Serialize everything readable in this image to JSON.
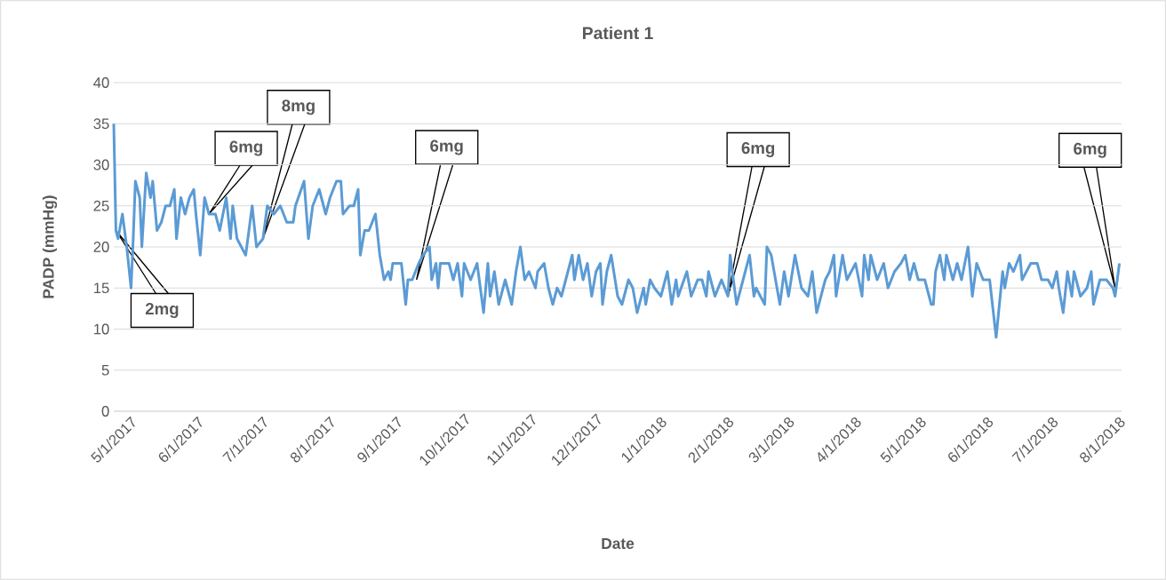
{
  "chart_data": {
    "type": "line",
    "title": "Patient 1",
    "xlabel": "Date",
    "ylabel": "PADP (mmHg)",
    "color": "#5b9bd5",
    "x": [
      "2017-05-01",
      "2017-05-02",
      "2017-05-03",
      "2017-05-05",
      "2017-05-07",
      "2017-05-09",
      "2017-05-10",
      "2017-05-11",
      "2017-05-13",
      "2017-05-14",
      "2017-05-16",
      "2017-05-18",
      "2017-05-19",
      "2017-05-21",
      "2017-05-23",
      "2017-05-25",
      "2017-05-27",
      "2017-05-29",
      "2017-05-30",
      "2017-06-01",
      "2017-06-03",
      "2017-06-05",
      "2017-06-07",
      "2017-06-08",
      "2017-06-10",
      "2017-06-12",
      "2017-06-14",
      "2017-06-17",
      "2017-06-19",
      "2017-06-22",
      "2017-06-24",
      "2017-06-25",
      "2017-06-27",
      "2017-07-01",
      "2017-07-04",
      "2017-07-06",
      "2017-07-09",
      "2017-07-11",
      "2017-07-14",
      "2017-07-17",
      "2017-07-20",
      "2017-07-23",
      "2017-07-24",
      "2017-07-28",
      "2017-07-30",
      "2017-08-01",
      "2017-08-04",
      "2017-08-07",
      "2017-08-09",
      "2017-08-12",
      "2017-08-14",
      "2017-08-15",
      "2017-08-18",
      "2017-08-20",
      "2017-08-22",
      "2017-08-23",
      "2017-08-25",
      "2017-08-27",
      "2017-08-30",
      "2017-09-01",
      "2017-09-03",
      "2017-09-05",
      "2017-09-06",
      "2017-09-07",
      "2017-09-11",
      "2017-09-13",
      "2017-09-14",
      "2017-09-16",
      "2017-09-19",
      "2017-09-21",
      "2017-09-24",
      "2017-09-25",
      "2017-09-27",
      "2017-09-28",
      "2017-09-29",
      "2017-10-03",
      "2017-10-05",
      "2017-10-07",
      "2017-10-09",
      "2017-10-10",
      "2017-10-13",
      "2017-10-16",
      "2017-10-19",
      "2017-10-21",
      "2017-10-22",
      "2017-10-24",
      "2017-10-26",
      "2017-10-29",
      "2017-10-30",
      "2017-11-01",
      "2017-11-03",
      "2017-11-05",
      "2017-11-07",
      "2017-11-09",
      "2017-11-12",
      "2017-11-13",
      "2017-11-16",
      "2017-11-18",
      "2017-11-20",
      "2017-11-22",
      "2017-11-24",
      "2017-11-27",
      "2017-11-29",
      "2017-11-30",
      "2017-12-02",
      "2017-12-04",
      "2017-12-06",
      "2017-12-08",
      "2017-12-10",
      "2017-12-12",
      "2017-12-13",
      "2017-12-15",
      "2017-12-17",
      "2017-12-20",
      "2017-12-22",
      "2017-12-25",
      "2017-12-27",
      "2017-12-29",
      "2018-01-01",
      "2018-01-02",
      "2018-01-04",
      "2018-01-06",
      "2018-01-09",
      "2018-01-12",
      "2018-01-14",
      "2018-01-16",
      "2018-01-17",
      "2018-01-21",
      "2018-01-23",
      "2018-01-26",
      "2018-01-28",
      "2018-01-30",
      "2018-01-31",
      "2018-02-03",
      "2018-02-06",
      "2018-02-09",
      "2018-02-10",
      "2018-02-13",
      "2018-02-15",
      "2018-02-16",
      "2018-02-19",
      "2018-02-21",
      "2018-02-22",
      "2018-02-26",
      "2018-02-27",
      "2018-03-01",
      "2018-03-03",
      "2018-03-05",
      "2018-03-07",
      "2018-03-09",
      "2018-03-12",
      "2018-03-15",
      "2018-03-18",
      "2018-03-20",
      "2018-03-22",
      "2018-03-26",
      "2018-03-28",
      "2018-03-30",
      "2018-03-31",
      "2018-04-03",
      "2018-04-05",
      "2018-04-07",
      "2018-04-09",
      "2018-04-12",
      "2018-04-13",
      "2018-04-15",
      "2018-04-16",
      "2018-04-19",
      "2018-04-22",
      "2018-04-24",
      "2018-04-27",
      "2018-04-30",
      "2018-05-02",
      "2018-05-04",
      "2018-05-06",
      "2018-05-08",
      "2018-05-11",
      "2018-05-14",
      "2018-05-15",
      "2018-05-16",
      "2018-05-18",
      "2018-05-20",
      "2018-05-21",
      "2018-05-24",
      "2018-05-26",
      "2018-05-28",
      "2018-05-31",
      "2018-06-02",
      "2018-06-04",
      "2018-06-07",
      "2018-06-10",
      "2018-06-13",
      "2018-06-16",
      "2018-06-17",
      "2018-06-19",
      "2018-06-21",
      "2018-06-24",
      "2018-06-25",
      "2018-06-29",
      "2018-07-02",
      "2018-07-04",
      "2018-07-07",
      "2018-07-09",
      "2018-07-11",
      "2018-07-12",
      "2018-07-14",
      "2018-07-16",
      "2018-07-18",
      "2018-07-19",
      "2018-07-22",
      "2018-07-25",
      "2018-07-27",
      "2018-07-28",
      "2018-07-31",
      "2018-08-03",
      "2018-08-06",
      "2018-08-07",
      "2018-08-09"
    ],
    "values": [
      35,
      22,
      21,
      24,
      20,
      15,
      21,
      28,
      26,
      20,
      29,
      26,
      28,
      22,
      23,
      25,
      25,
      27,
      21,
      26,
      24,
      26,
      27,
      24,
      19,
      26,
      24,
      24,
      22,
      26,
      21,
      25,
      21,
      19,
      25,
      20,
      21,
      25,
      24,
      25,
      23,
      23,
      25,
      28,
      21,
      25,
      27,
      24,
      26,
      28,
      28,
      24,
      25,
      25,
      27,
      19,
      22,
      22,
      24,
      19,
      16,
      17,
      16,
      18,
      18,
      13,
      16,
      16,
      18,
      19,
      20,
      16,
      18,
      15,
      18,
      18,
      16,
      18,
      14,
      18,
      16,
      18,
      12,
      18,
      14,
      17,
      13,
      16,
      15,
      13,
      17,
      20,
      16,
      17,
      15,
      17,
      18,
      15,
      13,
      15,
      14,
      17,
      19,
      16,
      19,
      16,
      18,
      14,
      17,
      18,
      13,
      17,
      19,
      14,
      13,
      16,
      15,
      12,
      15,
      13,
      16,
      15,
      14,
      17,
      13,
      16,
      14,
      17,
      14,
      16,
      16,
      14,
      17,
      14,
      16,
      14,
      19,
      13,
      15,
      16,
      19,
      14,
      15,
      13,
      20,
      19,
      16,
      13,
      17,
      14,
      19,
      15,
      14,
      17,
      12,
      16,
      17,
      19,
      14,
      19,
      16,
      17,
      18,
      14,
      19,
      16,
      19,
      16,
      18,
      15,
      17,
      18,
      19,
      16,
      18,
      16,
      16,
      13,
      13,
      17,
      19,
      16,
      19,
      16,
      18,
      16,
      20,
      14,
      18,
      16,
      16,
      9,
      17,
      15,
      18,
      17,
      19,
      16,
      18,
      18,
      16,
      16,
      15,
      17,
      15,
      12,
      17,
      14,
      17,
      14,
      15,
      17,
      13,
      16,
      16,
      15,
      14,
      18
    ],
    "xlim": [
      "2017-05-01",
      "2018-08-10"
    ],
    "ylim": [
      0,
      40
    ],
    "yticks": [
      0,
      5,
      10,
      15,
      20,
      25,
      30,
      35,
      40
    ],
    "xticks": [
      {
        "value": "2017-05-01",
        "label": "5/1/2017"
      },
      {
        "value": "2017-06-01",
        "label": "6/1/2017"
      },
      {
        "value": "2017-07-01",
        "label": "7/1/2017"
      },
      {
        "value": "2017-08-01",
        "label": "8/1/2017"
      },
      {
        "value": "2017-09-01",
        "label": "9/1/2017"
      },
      {
        "value": "2017-10-01",
        "label": "10/1/2017"
      },
      {
        "value": "2017-11-01",
        "label": "11/1/2017"
      },
      {
        "value": "2017-12-01",
        "label": "12/1/2017"
      },
      {
        "value": "2018-01-01",
        "label": "1/1/2018"
      },
      {
        "value": "2018-02-01",
        "label": "2/1/2018"
      },
      {
        "value": "2018-03-01",
        "label": "3/1/2018"
      },
      {
        "value": "2018-04-01",
        "label": "4/1/2018"
      },
      {
        "value": "2018-05-01",
        "label": "5/1/2018"
      },
      {
        "value": "2018-06-01",
        "label": "6/1/2018"
      },
      {
        "value": "2018-07-01",
        "label": "7/1/2018"
      },
      {
        "value": "2018-08-01",
        "label": "8/1/2018"
      }
    ],
    "grid": "y",
    "annotations": [
      {
        "text": "2mg",
        "x": "2017-05-02",
        "y": 22
      },
      {
        "text": "6mg",
        "x": "2017-06-14",
        "y": 24
      },
      {
        "text": "8mg",
        "x": "2017-07-09",
        "y": 21
      },
      {
        "text": "6mg",
        "x": "2017-09-18",
        "y": 16
      },
      {
        "text": "6mg",
        "x": "2018-02-09",
        "y": 14
      },
      {
        "text": "6mg",
        "x": "2018-08-07",
        "y": 15
      }
    ]
  }
}
